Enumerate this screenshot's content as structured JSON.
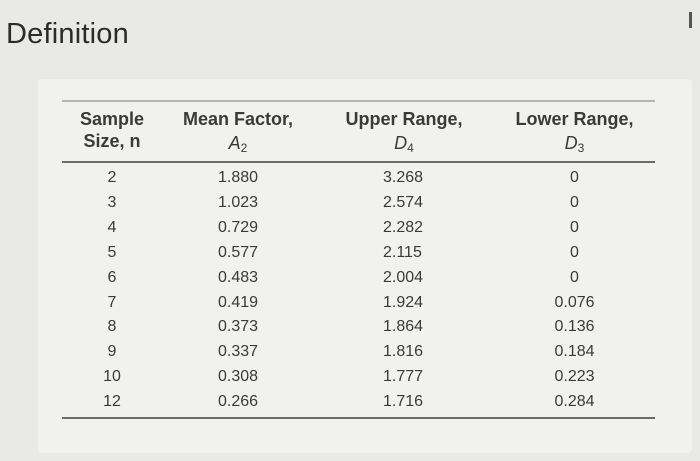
{
  "page_title": "Definition",
  "table": {
    "headers": [
      {
        "line1": "Sample",
        "line2": "Size, n",
        "symbol": "",
        "sub": ""
      },
      {
        "line1": "Mean Factor,",
        "line2": "",
        "symbol": "A",
        "sub": "2"
      },
      {
        "line1": "Upper Range,",
        "line2": "",
        "symbol": "D",
        "sub": "4"
      },
      {
        "line1": "Lower Range,",
        "line2": "",
        "symbol": "D",
        "sub": "3"
      }
    ],
    "rows": [
      {
        "n": "2",
        "a2": "1.880",
        "d4": "3.268",
        "d3": "0"
      },
      {
        "n": "3",
        "a2": "1.023",
        "d4": "2.574",
        "d3": "0"
      },
      {
        "n": "4",
        "a2": "0.729",
        "d4": "2.282",
        "d3": "0"
      },
      {
        "n": "5",
        "a2": "0.577",
        "d4": "2.115",
        "d3": "0"
      },
      {
        "n": "6",
        "a2": "0.483",
        "d4": "2.004",
        "d3": "0"
      },
      {
        "n": "7",
        "a2": "0.419",
        "d4": "1.924",
        "d3": "0.076"
      },
      {
        "n": "8",
        "a2": "0.373",
        "d4": "1.864",
        "d3": "0.136"
      },
      {
        "n": "9",
        "a2": "0.337",
        "d4": "1.816",
        "d3": "0.184"
      },
      {
        "n": "10",
        "a2": "0.308",
        "d4": "1.777",
        "d3": "0.223"
      },
      {
        "n": "12",
        "a2": "0.266",
        "d4": "1.716",
        "d3": "0.284"
      }
    ]
  }
}
